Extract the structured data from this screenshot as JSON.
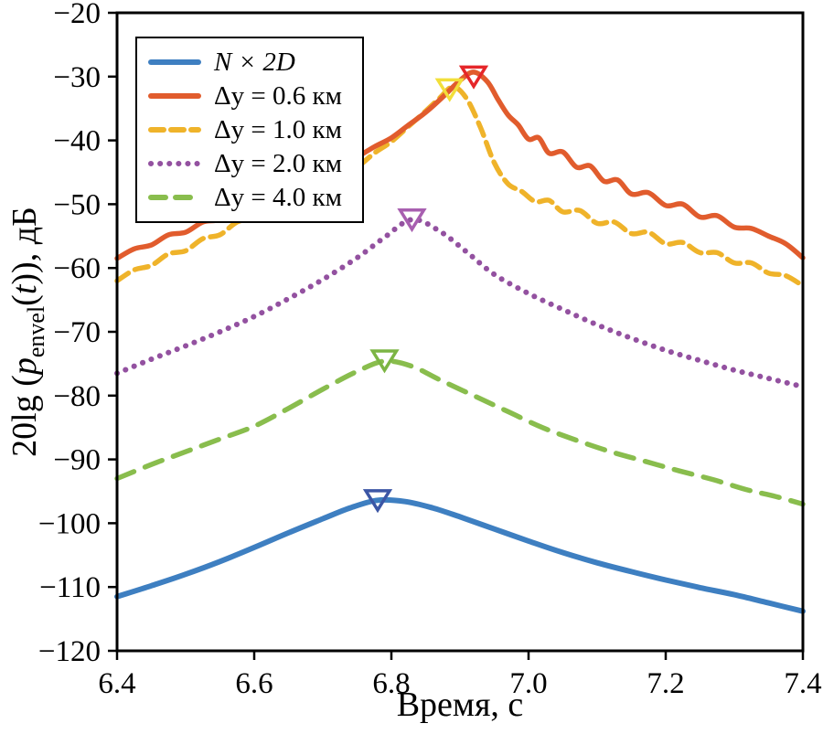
{
  "figure": {
    "xlabel": "Время, с",
    "ylabel_plain": "20lg (penvel(t)), дБ",
    "ylabel_parts": {
      "prefix": "20lg (",
      "p": "p",
      "sub": "envel",
      "open": "(",
      "t": "t",
      "suffix": ")), дБ"
    }
  },
  "chart_data": {
    "type": "line",
    "title": "",
    "xlabel": "Время, с",
    "ylabel": "20lg (p_envel(t)), дБ",
    "xlim": [
      6.4,
      7.4
    ],
    "ylim": [
      -120,
      -20
    ],
    "xticks": [
      6.4,
      6.6,
      6.8,
      7.0,
      7.2,
      7.4
    ],
    "yticks": [
      -20,
      -30,
      -40,
      -50,
      -60,
      -70,
      -80,
      -90,
      -100,
      -110,
      -120
    ],
    "grid": false,
    "legend_position": "upper-left",
    "axis_color": "#000000",
    "series": [
      {
        "label": "N × 2D",
        "color": "#3e7fc1",
        "style": "solid",
        "dash": "",
        "legend_dash": "",
        "width": 6,
        "x": [
          6.4,
          6.45,
          6.5,
          6.55,
          6.6,
          6.65,
          6.7,
          6.74,
          6.78,
          6.82,
          6.86,
          6.9,
          6.95,
          7.0,
          7.05,
          7.1,
          7.15,
          7.2,
          7.25,
          7.3,
          7.35,
          7.4
        ],
        "y": [
          -111.5,
          -109.8,
          -108.0,
          -106.0,
          -103.8,
          -101.5,
          -99.3,
          -97.6,
          -96.4,
          -96.6,
          -97.6,
          -99.0,
          -100.9,
          -102.8,
          -104.6,
          -106.2,
          -107.6,
          -108.9,
          -110.1,
          -111.2,
          -112.5,
          -113.8
        ],
        "marker": {
          "shape": "open-triangle-down",
          "x": 6.78,
          "y": -96.2,
          "color": "#3c56a5"
        }
      },
      {
        "label": "Δy = 0.6 км",
        "color": "#e15c2d",
        "style": "solid",
        "dash": "",
        "legend_dash": "",
        "width": 5.5,
        "x": [
          6.4,
          6.425,
          6.45,
          6.475,
          6.5,
          6.525,
          6.55,
          6.575,
          6.6,
          6.625,
          6.65,
          6.675,
          6.7,
          6.725,
          6.75,
          6.775,
          6.8,
          6.825,
          6.85,
          6.875,
          6.9,
          6.92,
          6.94,
          6.955,
          6.97,
          6.985,
          7.0,
          7.015,
          7.03,
          7.05,
          7.07,
          7.09,
          7.11,
          7.13,
          7.15,
          7.175,
          7.2,
          7.225,
          7.25,
          7.275,
          7.3,
          7.325,
          7.35,
          7.375,
          7.4
        ],
        "y": [
          -58.5,
          -57.0,
          -56.4,
          -54.8,
          -54.4,
          -52.8,
          -52.4,
          -50.8,
          -50.2,
          -48.8,
          -48.0,
          -46.4,
          -45.4,
          -43.8,
          -42.6,
          -41.0,
          -39.6,
          -37.6,
          -35.6,
          -33.2,
          -30.6,
          -29.3,
          -30.8,
          -33.5,
          -36.0,
          -37.6,
          -39.8,
          -39.6,
          -42.0,
          -41.8,
          -44.2,
          -44.0,
          -46.4,
          -46.2,
          -48.4,
          -48.2,
          -50.2,
          -50.0,
          -52.0,
          -51.8,
          -53.6,
          -53.8,
          -55.0,
          -56.2,
          -58.4
        ],
        "marker": {
          "shape": "open-triangle-down",
          "x": 6.92,
          "y": -29.8,
          "color": "#e52629"
        }
      },
      {
        "label": "Δy = 1.0 км",
        "color": "#efb32a",
        "style": "dashed",
        "dash": "15 8",
        "legend_dash": "14 8",
        "width": 5.5,
        "x": [
          6.4,
          6.425,
          6.45,
          6.475,
          6.5,
          6.525,
          6.55,
          6.575,
          6.6,
          6.625,
          6.65,
          6.675,
          6.7,
          6.725,
          6.75,
          6.775,
          6.8,
          6.825,
          6.85,
          6.87,
          6.89,
          6.91,
          6.93,
          6.95,
          6.97,
          6.99,
          7.01,
          7.03,
          7.05,
          7.075,
          7.1,
          7.125,
          7.15,
          7.175,
          7.2,
          7.225,
          7.25,
          7.275,
          7.3,
          7.325,
          7.35,
          7.375,
          7.4
        ],
        "y": [
          -62.0,
          -60.3,
          -59.6,
          -57.8,
          -57.3,
          -55.4,
          -54.8,
          -52.8,
          -52.2,
          -50.4,
          -49.8,
          -48.0,
          -47.2,
          -45.4,
          -44.2,
          -42.0,
          -40.2,
          -37.8,
          -35.4,
          -33.4,
          -31.6,
          -33.5,
          -38.0,
          -43.5,
          -46.8,
          -48.0,
          -49.6,
          -49.4,
          -51.2,
          -51.0,
          -53.0,
          -52.8,
          -54.6,
          -54.4,
          -56.2,
          -56.0,
          -57.6,
          -57.6,
          -59.2,
          -59.2,
          -60.8,
          -61.2,
          -62.8
        ],
        "marker": {
          "shape": "open-triangle-down",
          "x": 6.885,
          "y": -31.8,
          "color": "#f2df3a"
        }
      },
      {
        "label": "Δy = 2.0 км",
        "color": "#9351a0",
        "style": "dotted",
        "dash": "0.1 10",
        "legend_dash": "0.1 10",
        "width": 6,
        "x": [
          6.4,
          6.45,
          6.5,
          6.55,
          6.6,
          6.65,
          6.7,
          6.75,
          6.79,
          6.83,
          6.87,
          6.91,
          6.95,
          7.0,
          7.05,
          7.1,
          7.15,
          7.2,
          7.25,
          7.3,
          7.35,
          7.4
        ],
        "y": [
          -76.5,
          -74.3,
          -72.2,
          -70.0,
          -67.6,
          -64.8,
          -61.8,
          -58.4,
          -55.2,
          -52.4,
          -54.2,
          -57.5,
          -61.0,
          -64.0,
          -66.5,
          -68.9,
          -71.0,
          -72.9,
          -74.5,
          -76.0,
          -77.3,
          -78.6
        ],
        "marker": {
          "shape": "open-triangle-down",
          "x": 6.83,
          "y": -52.2,
          "color": "#a85fb0"
        }
      },
      {
        "label": "Δy = 4.0 км",
        "color": "#89bd4d",
        "style": "dashed",
        "dash": "20 13",
        "legend_dash": "16 11",
        "width": 5.5,
        "x": [
          6.4,
          6.45,
          6.5,
          6.55,
          6.6,
          6.65,
          6.7,
          6.75,
          6.79,
          6.83,
          6.87,
          6.92,
          6.97,
          7.02,
          7.07,
          7.12,
          7.17,
          7.22,
          7.27,
          7.32,
          7.36,
          7.4
        ],
        "y": [
          -93.0,
          -90.8,
          -88.8,
          -86.8,
          -84.8,
          -82.0,
          -79.0,
          -76.2,
          -74.6,
          -75.4,
          -77.5,
          -80.0,
          -82.5,
          -85.0,
          -87.0,
          -88.8,
          -90.3,
          -91.8,
          -93.2,
          -94.8,
          -95.8,
          -97.0
        ],
        "marker": {
          "shape": "open-triangle-down",
          "x": 6.79,
          "y": -74.3,
          "color": "#7cb544"
        }
      }
    ]
  }
}
